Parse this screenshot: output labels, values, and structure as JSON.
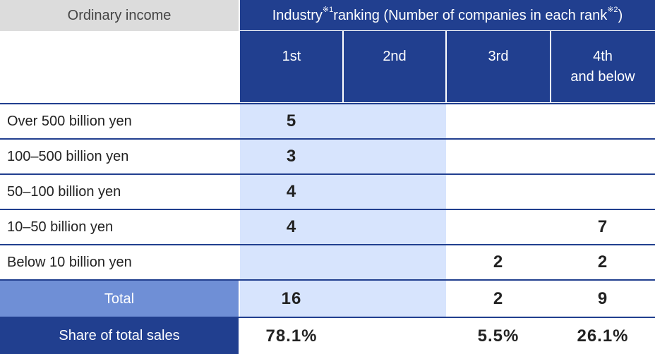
{
  "header": {
    "row_label": "Ordinary income",
    "group_prefix": "Industry",
    "group_mark1": "※1",
    "group_middle": "ranking (Number of companies in each rank",
    "group_mark2": "※2",
    "group_suffix": ")",
    "columns": [
      "1st",
      "2nd",
      "3rd",
      "4th\nand below"
    ]
  },
  "rows": [
    {
      "label": "Over 500 billion yen",
      "values": [
        "5",
        "",
        "",
        ""
      ]
    },
    {
      "label": "100–500 billion yen",
      "values": [
        "3",
        "",
        "",
        ""
      ]
    },
    {
      "label": "50–100 billion yen",
      "values": [
        "4",
        "",
        "",
        ""
      ]
    },
    {
      "label": "10–50 billion yen",
      "values": [
        "4",
        "",
        "",
        "7"
      ]
    },
    {
      "label": "Below 10 billion yen",
      "values": [
        "",
        "",
        "2",
        "2"
      ]
    }
  ],
  "total": {
    "label": "Total",
    "values": [
      "16",
      "",
      "2",
      "9"
    ]
  },
  "share": {
    "label": "Share of total sales",
    "values": [
      "78.1%",
      "",
      "5.5%",
      "26.1%"
    ]
  },
  "colors": {
    "navy": "#213f8f",
    "highlight": "#d7e4fd",
    "total_label_bg": "#6f8fd6",
    "header_grey": "#dcdcdc"
  }
}
